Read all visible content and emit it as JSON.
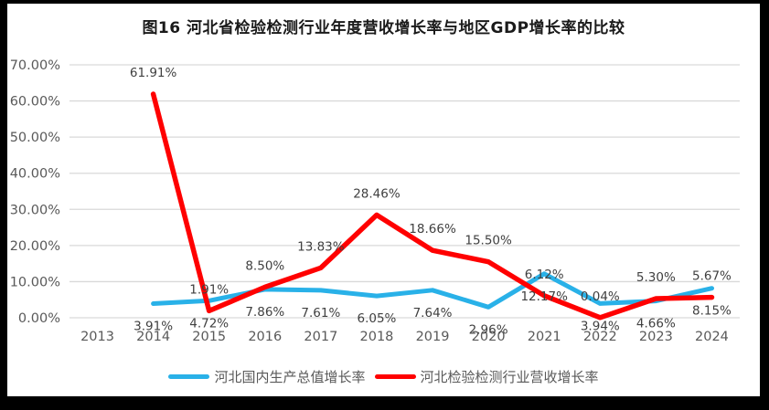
{
  "window": {
    "frame_color": "#000000",
    "card_color": "#ffffff"
  },
  "chart_data": {
    "type": "line",
    "title": "图16 河北省检验检测行业年度营收增长率与地区GDP增长率的比较",
    "categories": [
      "2013",
      "2014",
      "2015",
      "2016",
      "2017",
      "2018",
      "2019",
      "2020",
      "2021",
      "2022",
      "2023",
      "2024"
    ],
    "series": [
      {
        "name": "河北国内生产总值增长率",
        "color": "#29B1E8",
        "label_position": "below",
        "values": [
          null,
          3.91,
          4.72,
          7.86,
          7.61,
          6.05,
          7.64,
          2.96,
          12.17,
          3.94,
          4.66,
          8.15
        ],
        "data_labels": [
          null,
          "3.91%",
          "4.72%",
          "7.86%",
          "7.61%",
          "6.05%",
          "7.64%",
          "2.96%",
          "12.17%",
          "3.94%",
          "4.66%",
          "8.15%"
        ]
      },
      {
        "name": "河北检验检测行业营收增长率",
        "color": "#FF0000",
        "label_position": "above",
        "values": [
          null,
          61.91,
          1.91,
          8.5,
          13.83,
          28.46,
          18.66,
          15.5,
          6.12,
          0.04,
          5.3,
          5.67
        ],
        "data_labels": [
          null,
          "61.91%",
          "1.91%",
          "8.50%",
          "13.83%",
          "28.46%",
          "18.66%",
          "15.50%",
          "6.12%",
          "0.04%",
          "5.30%",
          "5.67%"
        ]
      }
    ],
    "ylim": [
      0,
      70
    ],
    "ytick_step": 10,
    "ytick_labels": [
      "0.00%",
      "10.00%",
      "20.00%",
      "30.00%",
      "40.00%",
      "50.00%",
      "60.00%",
      "70.00%"
    ],
    "grid": true,
    "legend_position": "bottom",
    "gridline_color": "#D9D9D9",
    "axis_text_color": "#595959",
    "data_label_color": "#404040"
  }
}
